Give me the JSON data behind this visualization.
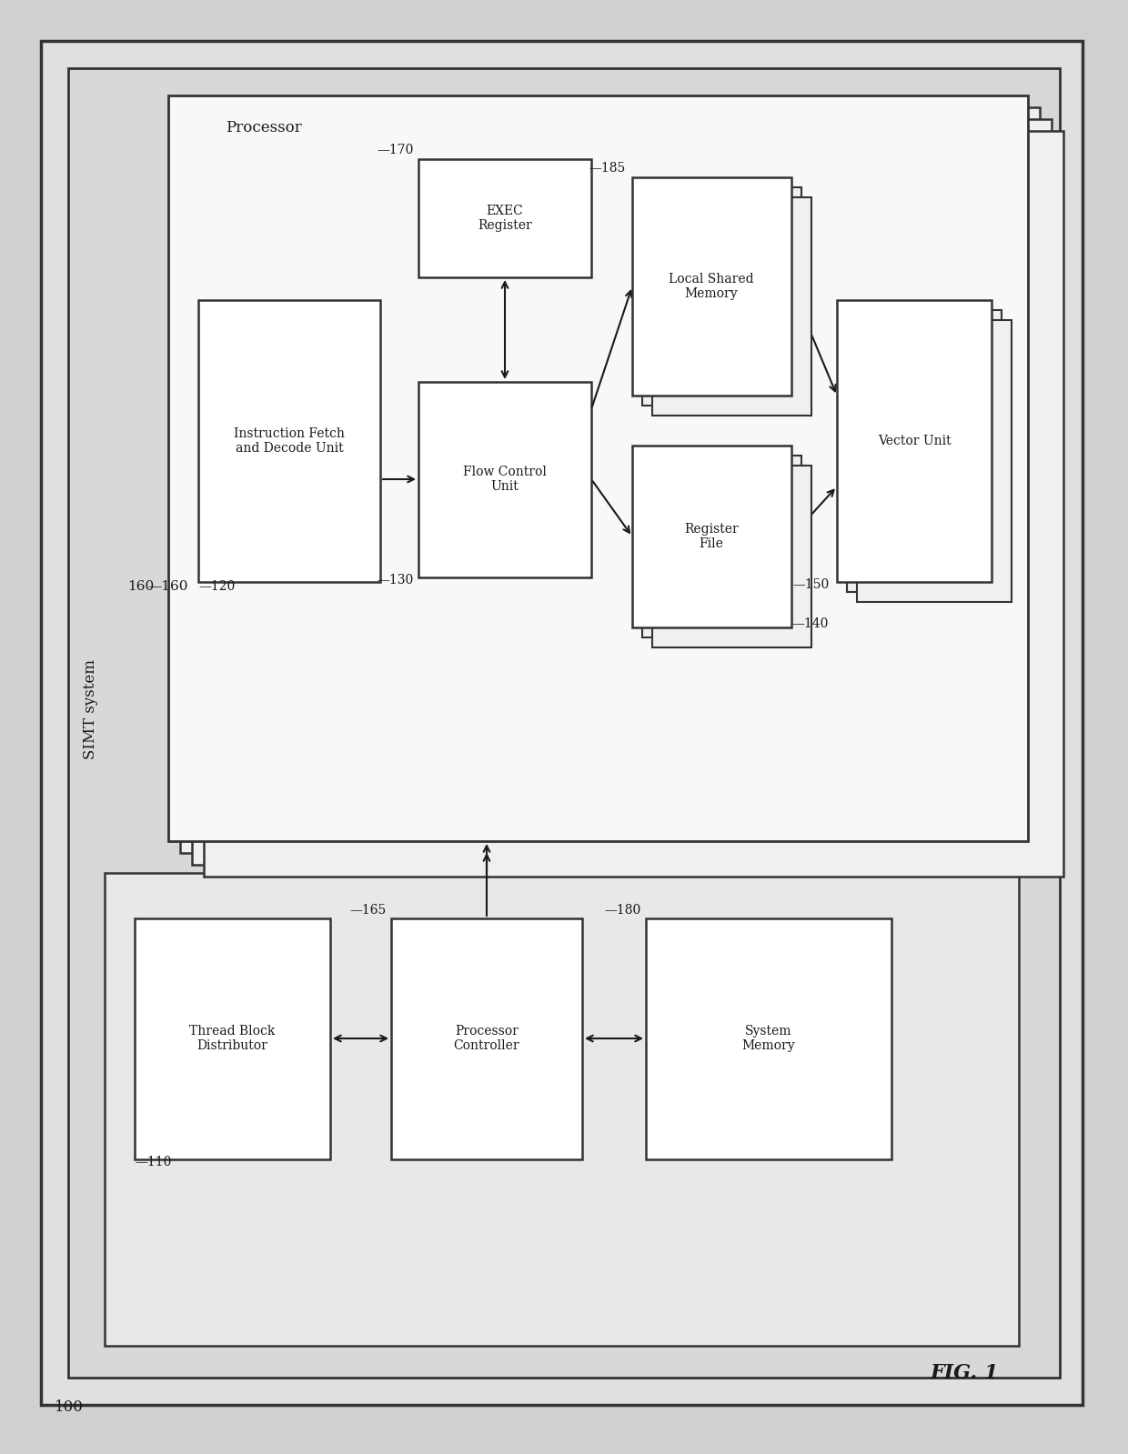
{
  "fig_width": 12.4,
  "fig_height": 15.99,
  "bg_color": "#e8e8e8",
  "boxes": {
    "instruction_fetch": {
      "text": "Instruction Fetch\nand Decode Unit",
      "label": "120"
    },
    "flow_control": {
      "text": "Flow Control\nUnit",
      "label": "130"
    },
    "exec_register": {
      "text": "EXEC\nRegister",
      "label": "170"
    },
    "local_shared_memory": {
      "text": "Local Shared\nMemory",
      "label": "185"
    },
    "register_file": {
      "text": "Register\nFile",
      "label": "140"
    },
    "vector_unit": {
      "text": "Vector Unit",
      "label": "150"
    },
    "thread_block": {
      "text": "Thread Block\nDistributor",
      "label": "110"
    },
    "processor_controller": {
      "text": "Processor\nController",
      "label": "165"
    },
    "system_memory": {
      "text": "System\nMemory",
      "label": "180"
    }
  },
  "labels": {
    "processor": "Processor",
    "simt": "SIMT system",
    "num_100": "100",
    "num_160": "160",
    "fig1": "FIG. 1"
  }
}
